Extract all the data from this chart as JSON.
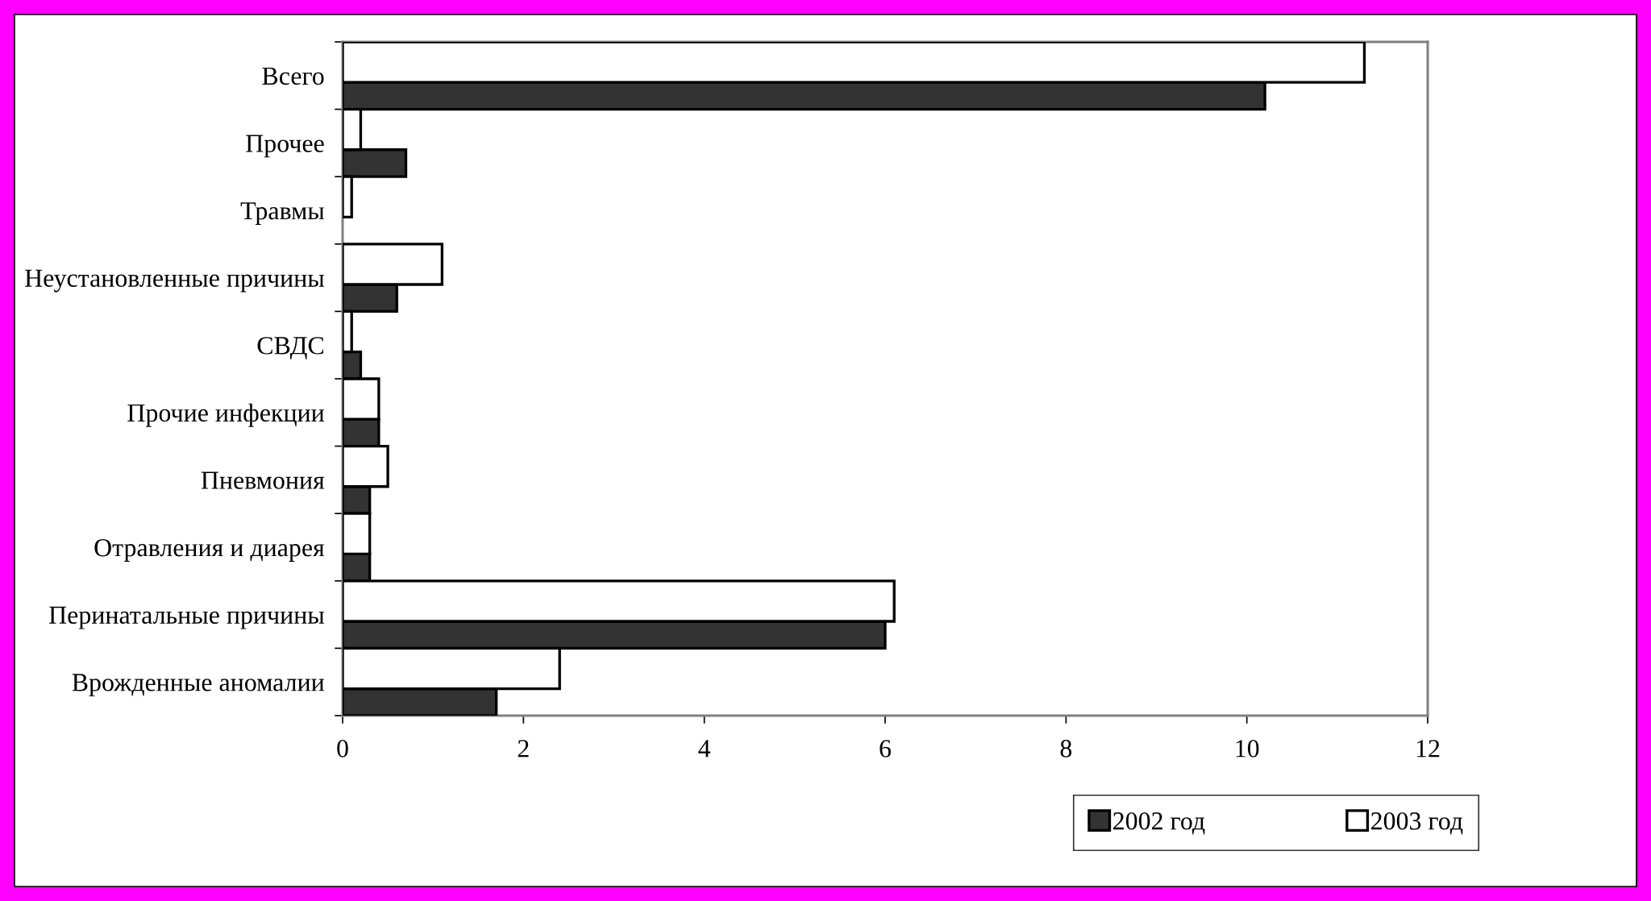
{
  "chart_data": {
    "type": "bar",
    "orientation": "horizontal",
    "categories": [
      "Всего",
      "Прочее",
      "Травмы",
      "Неустановленные причины",
      "СВДС",
      "Прочие инфекции",
      "Пневмония",
      "Отравления и диарея",
      "Перинатальные причины",
      "Врожденные аномалии"
    ],
    "series": [
      {
        "name": "2002 год",
        "color": "#333333",
        "values": [
          10.2,
          0.7,
          null,
          0.6,
          0.2,
          0.4,
          0.3,
          0.3,
          6.0,
          1.7
        ]
      },
      {
        "name": "2003 год",
        "color": "#ffffff",
        "values": [
          11.3,
          0.2,
          0.1,
          1.1,
          0.1,
          0.4,
          0.5,
          0.3,
          6.1,
          2.4
        ]
      }
    ],
    "xlim": [
      0,
      12
    ],
    "xticks": [
      0,
      2,
      4,
      6,
      8,
      10,
      12
    ],
    "grid": false,
    "legend": "bottom right"
  }
}
